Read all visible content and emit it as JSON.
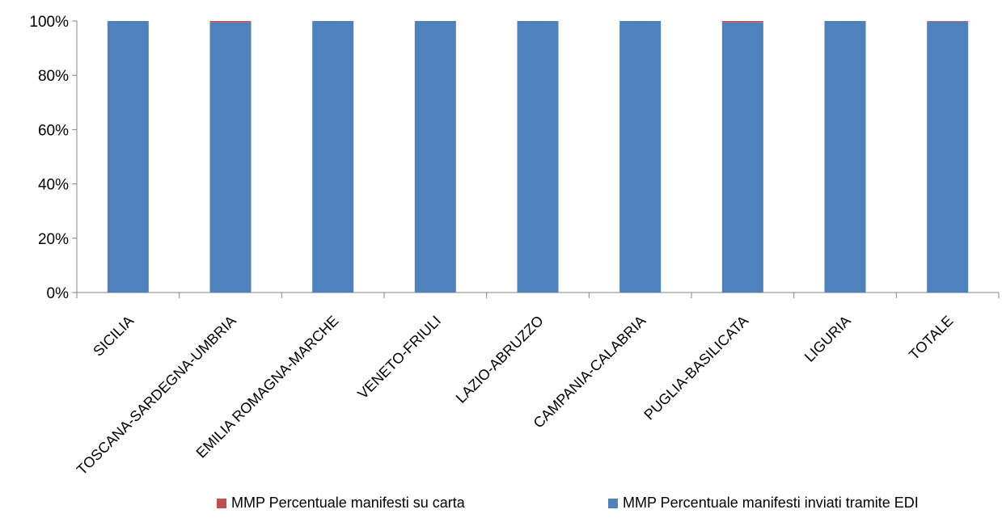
{
  "chart_data": {
    "type": "bar",
    "stacked": true,
    "normalized": true,
    "categories": [
      "SICILIA",
      "TOSCANA-SARDEGNA-UMBRIA",
      "EMILIA ROMAGNA-MARCHE",
      "VENETO-FRIULI",
      "LAZIO-ABRUZZO",
      "CAMPANIA-CALABRIA",
      "PUGLIA-BASILICATA",
      "LIGURIA",
      "TOTALE"
    ],
    "series": [
      {
        "name": "MMP Percentuale  manifesti inviati tramite EDI",
        "color": "#4F81BD",
        "values": [
          100,
          99.5,
          100,
          100,
          100,
          100,
          99.5,
          100,
          99.8
        ]
      },
      {
        "name": "MMP Percentuale  manifesti su carta",
        "color": "#C0504D",
        "values": [
          0,
          0.5,
          0,
          0,
          0,
          0,
          0.5,
          0,
          0.2
        ]
      }
    ],
    "ylim": [
      0,
      100
    ],
    "yticks": [
      "0%",
      "20%",
      "40%",
      "60%",
      "80%",
      "100%"
    ],
    "grid": false,
    "legend_position": "bottom"
  }
}
